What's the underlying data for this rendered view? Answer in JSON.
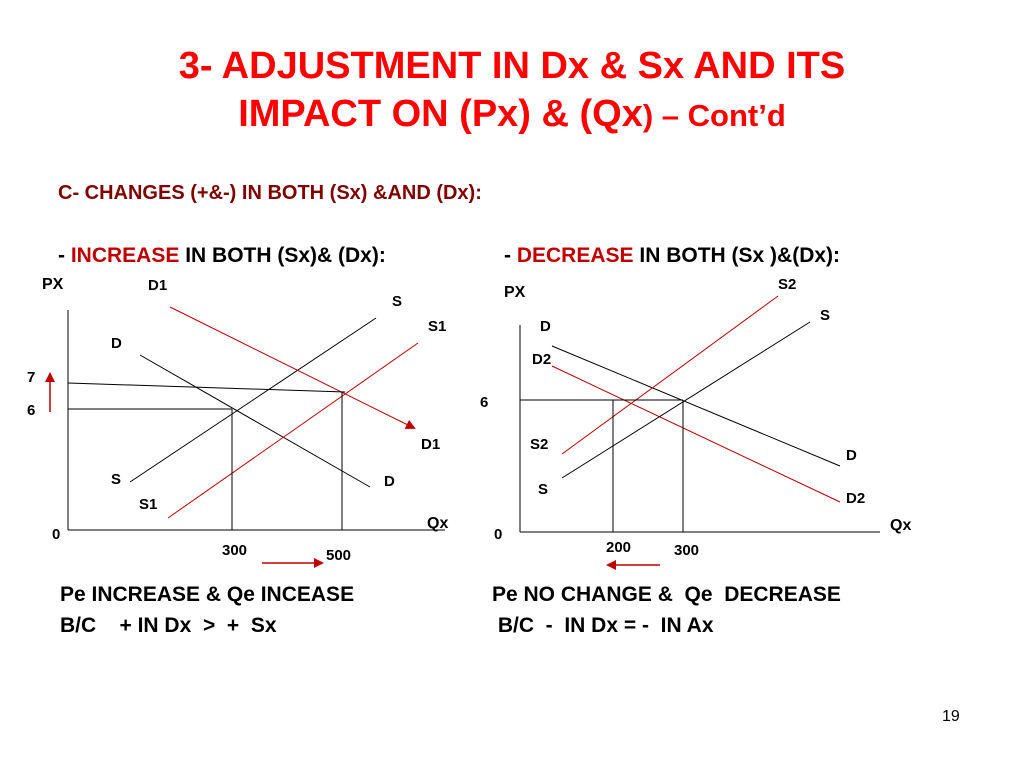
{
  "title": {
    "line1": "3- ADJUSTMENT IN Dx & Sx AND ITS",
    "line2_main": "IMPACT ON (Px) & (Qx",
    "line2_small": ") – Cont’d"
  },
  "subtitle": "C- CHANGES (+&-) IN BOTH (Sx) &AND (Dx):",
  "left": {
    "heading_prefix": "- ",
    "heading_accent": "INCREASE",
    "heading_rest": " IN BOTH (Sx)& (Dx):",
    "labels": {
      "px": "PX",
      "qx": "Qx",
      "origin": "0",
      "d1_top": "D1",
      "s_top": "S",
      "s1_top": "S1",
      "d_top": "D",
      "d1_arrow": "D1",
      "s_bottom": "S",
      "d_bottom": "D",
      "s1_bottom": "S1",
      "p7": "7",
      "p6": "6",
      "q300": "300",
      "q500": "500"
    },
    "conclusion1": "Pe INCREASE & Qe INCEASE",
    "conclusion2": "B/C    + IN Dx  >  +  Sx"
  },
  "right": {
    "heading_prefix": "- ",
    "heading_accent": "DECREASE",
    "heading_rest": " IN BOTH (Sx )&(Dx):",
    "labels": {
      "px": "PX",
      "qx": "Qx",
      "origin": "0",
      "s2_top": "S2",
      "s_top": "S",
      "d_top": "D",
      "d2_top": "D2",
      "p6": "6",
      "s2_mid": "S2",
      "s_bottom": "S",
      "d_bottom": "D",
      "d2_bottom": "D2",
      "q200": "200",
      "q300": "300"
    },
    "conclusion1": "Pe NO CHANGE &  Qe  DECREASE",
    "conclusion2": " B/C  -  IN Dx = -  IN Ax"
  },
  "slide_number": "19",
  "colors": {
    "title": "#ff0000",
    "subtitle": "#800000",
    "accent": "#c00000",
    "shifted_curve": "#c00000"
  }
}
